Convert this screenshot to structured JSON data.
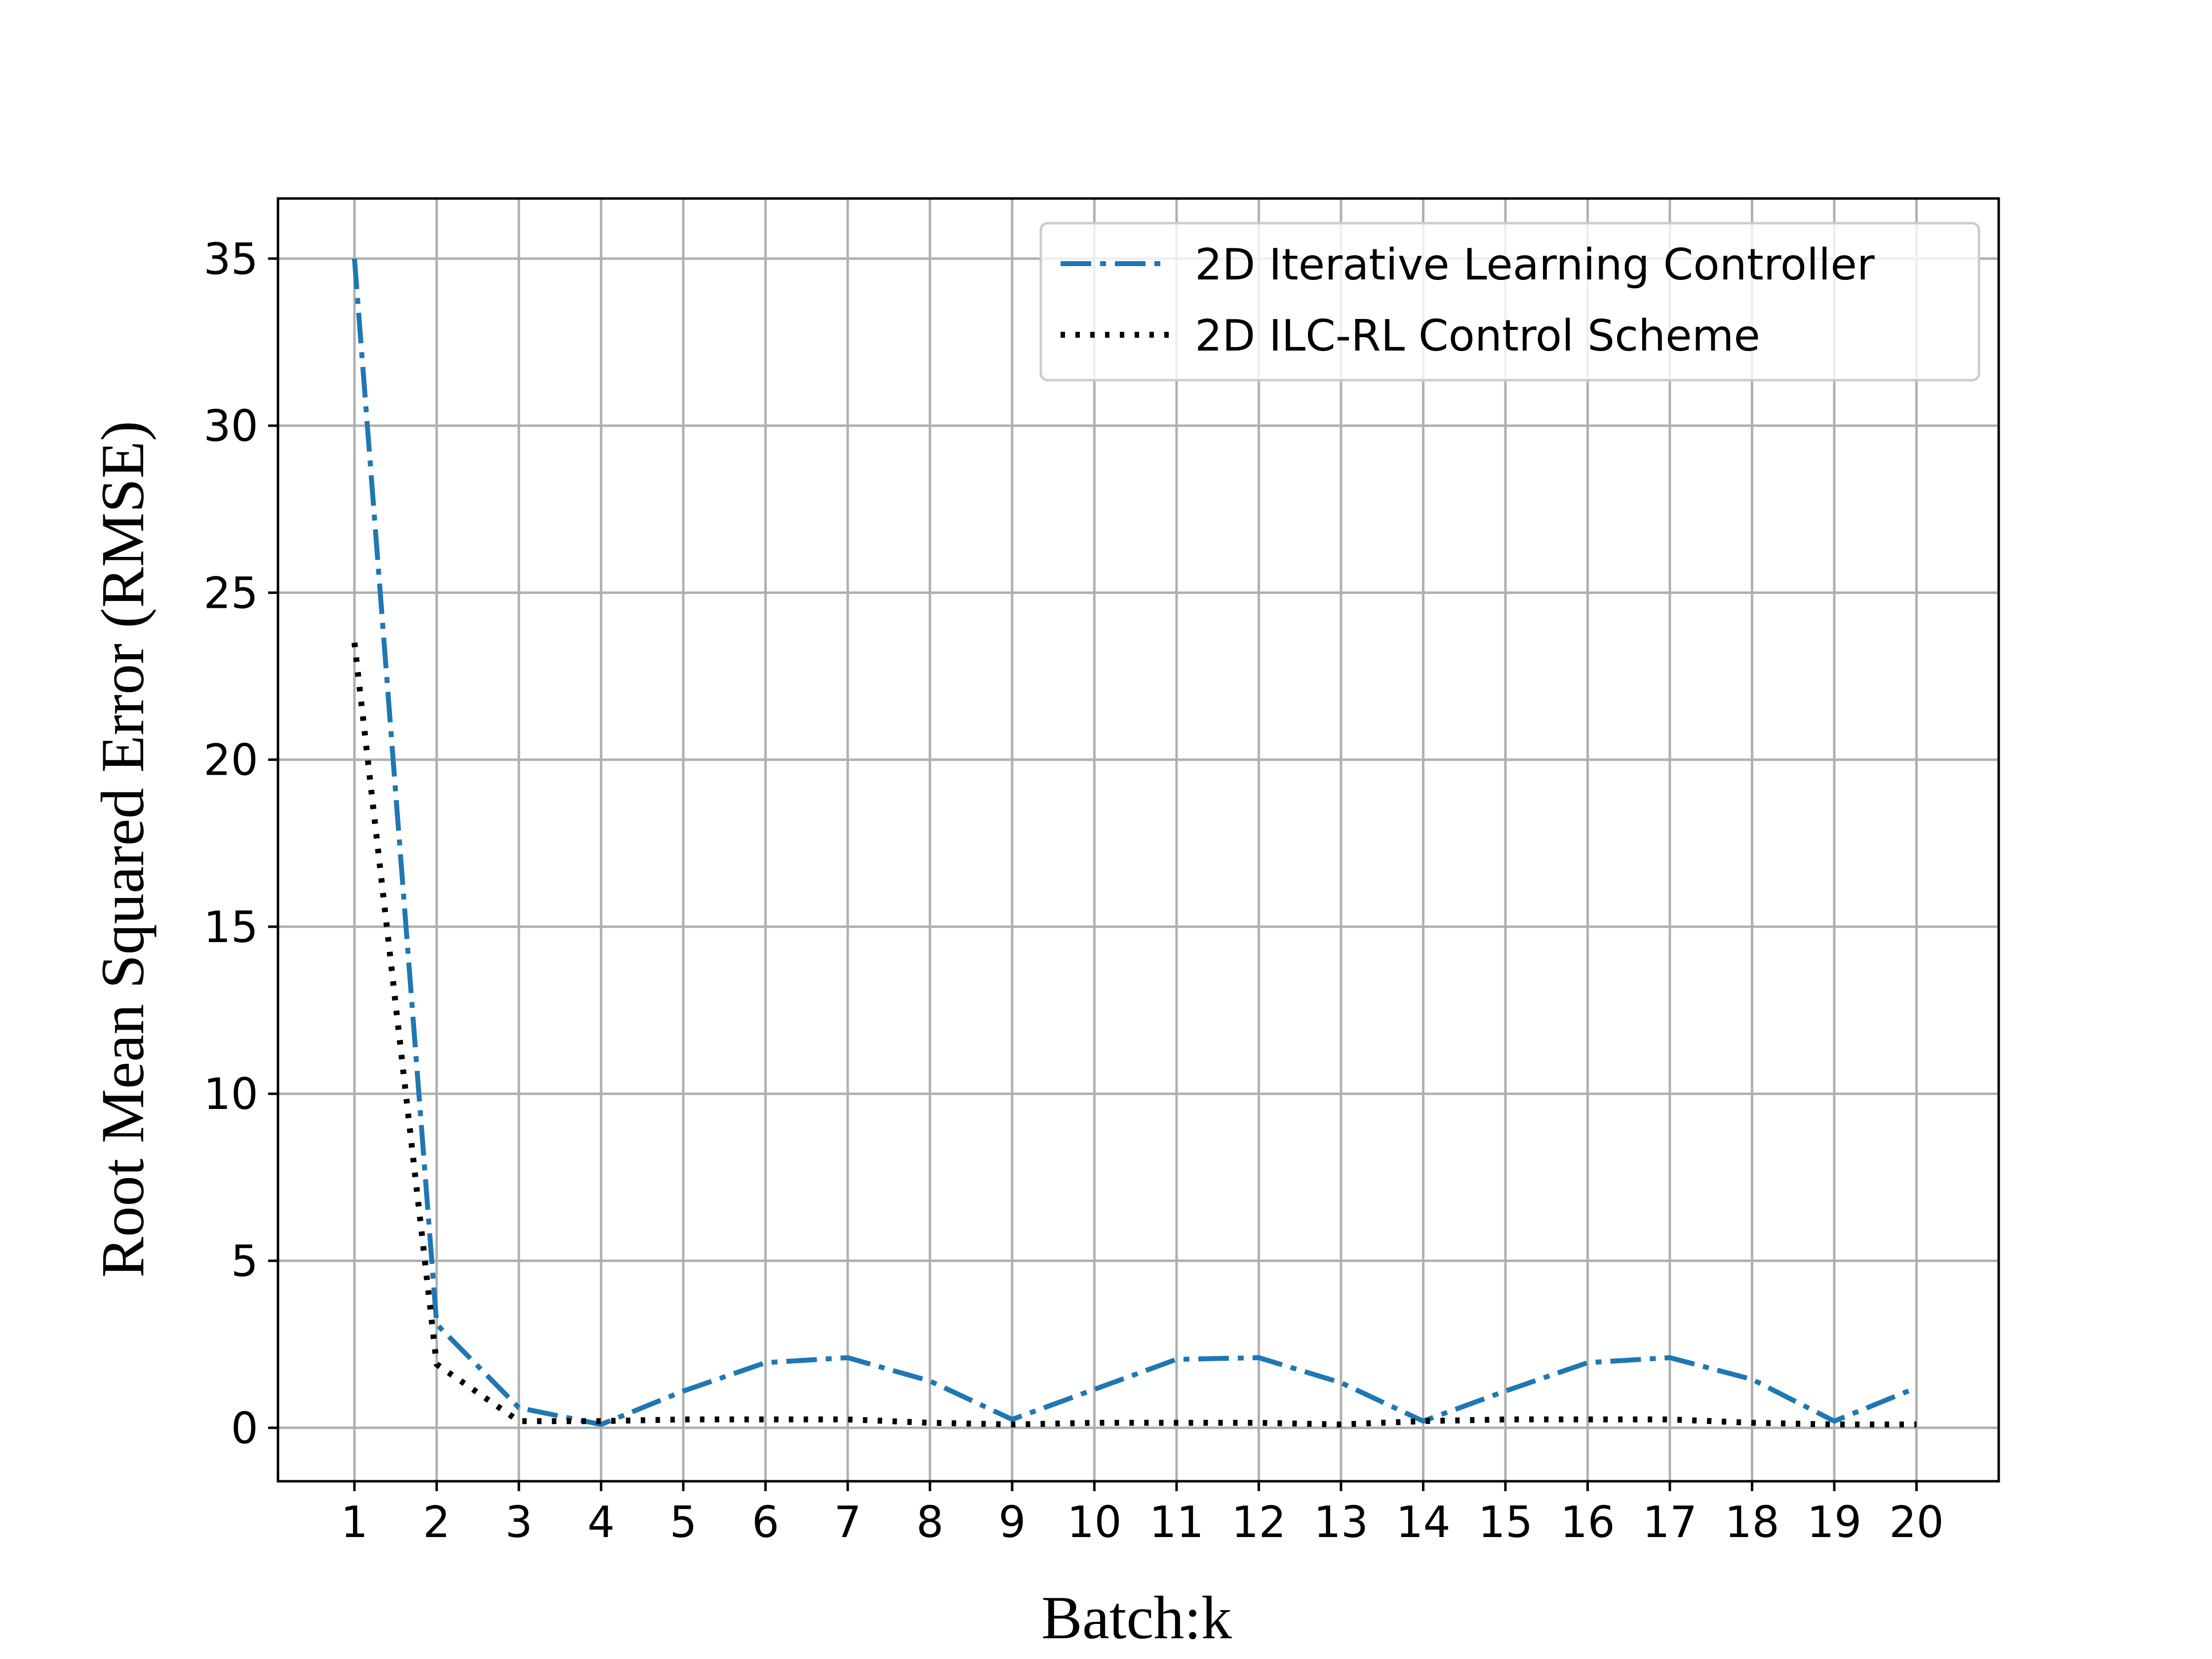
{
  "chart_data": {
    "type": "line",
    "title": "",
    "xlabel": "Batch:k",
    "ylabel": "Root Mean Squared Error (RMSE)",
    "x": [
      1,
      2,
      3,
      4,
      5,
      6,
      7,
      8,
      9,
      10,
      11,
      12,
      13,
      14,
      15,
      16,
      17,
      18,
      19,
      20
    ],
    "xticks": [
      "1",
      "2",
      "3",
      "4",
      "5",
      "6",
      "7",
      "8",
      "9",
      "10",
      "11",
      "12",
      "13",
      "14",
      "15",
      "16",
      "17",
      "18",
      "19",
      "20"
    ],
    "yticks": [
      "0",
      "5",
      "10",
      "15",
      "20",
      "25",
      "30",
      "35"
    ],
    "xlim": [
      0.07,
      21.0
    ],
    "ylim": [
      -1.6,
      36.8
    ],
    "grid": true,
    "legend_position": "top-right",
    "series": [
      {
        "name": "2D Iterative Learning Controller",
        "color": "#1f77b4",
        "style": "dashdot",
        "values": [
          35.0,
          3.1,
          0.6,
          0.1,
          1.1,
          1.95,
          2.1,
          1.4,
          0.25,
          1.15,
          2.05,
          2.1,
          1.35,
          0.2,
          1.1,
          1.95,
          2.1,
          1.45,
          0.2,
          1.2
        ]
      },
      {
        "name": "2D ILC-RL Control Scheme",
        "color": "#000000",
        "style": "dotted",
        "values": [
          23.5,
          1.9,
          0.2,
          0.2,
          0.25,
          0.25,
          0.25,
          0.15,
          0.1,
          0.15,
          0.15,
          0.15,
          0.1,
          0.2,
          0.25,
          0.25,
          0.25,
          0.15,
          0.1,
          0.1
        ]
      }
    ]
  }
}
